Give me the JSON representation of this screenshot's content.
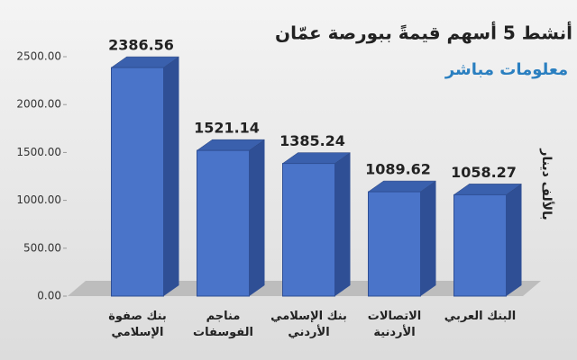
{
  "chart_data": {
    "type": "bar",
    "title": "أنشط 5 أسهم قيمةً ببورصة عمّان",
    "logo": "معلومات مباشر",
    "y_axis_label": "بالألف دينار",
    "categories": [
      "بنك صفوة الإسلامي",
      "مناجم الفوسفات",
      "بنك الإسلامي الأردني",
      "الاتصالات الأردنية",
      "البنك العربي"
    ],
    "values": [
      2386.56,
      1521.14,
      1385.24,
      1089.62,
      1058.27
    ],
    "color": "#4a74c9",
    "ylim": [
      0,
      2500
    ],
    "yticks": [
      {
        "value": 0,
        "label": "0.00"
      },
      {
        "value": 500,
        "label": "500.00"
      },
      {
        "value": 1000,
        "label": "1000.00"
      },
      {
        "value": 1500,
        "label": "1500.00"
      },
      {
        "value": 2000,
        "label": "2000.00"
      },
      {
        "value": 2500,
        "label": "2500.00"
      }
    ]
  }
}
